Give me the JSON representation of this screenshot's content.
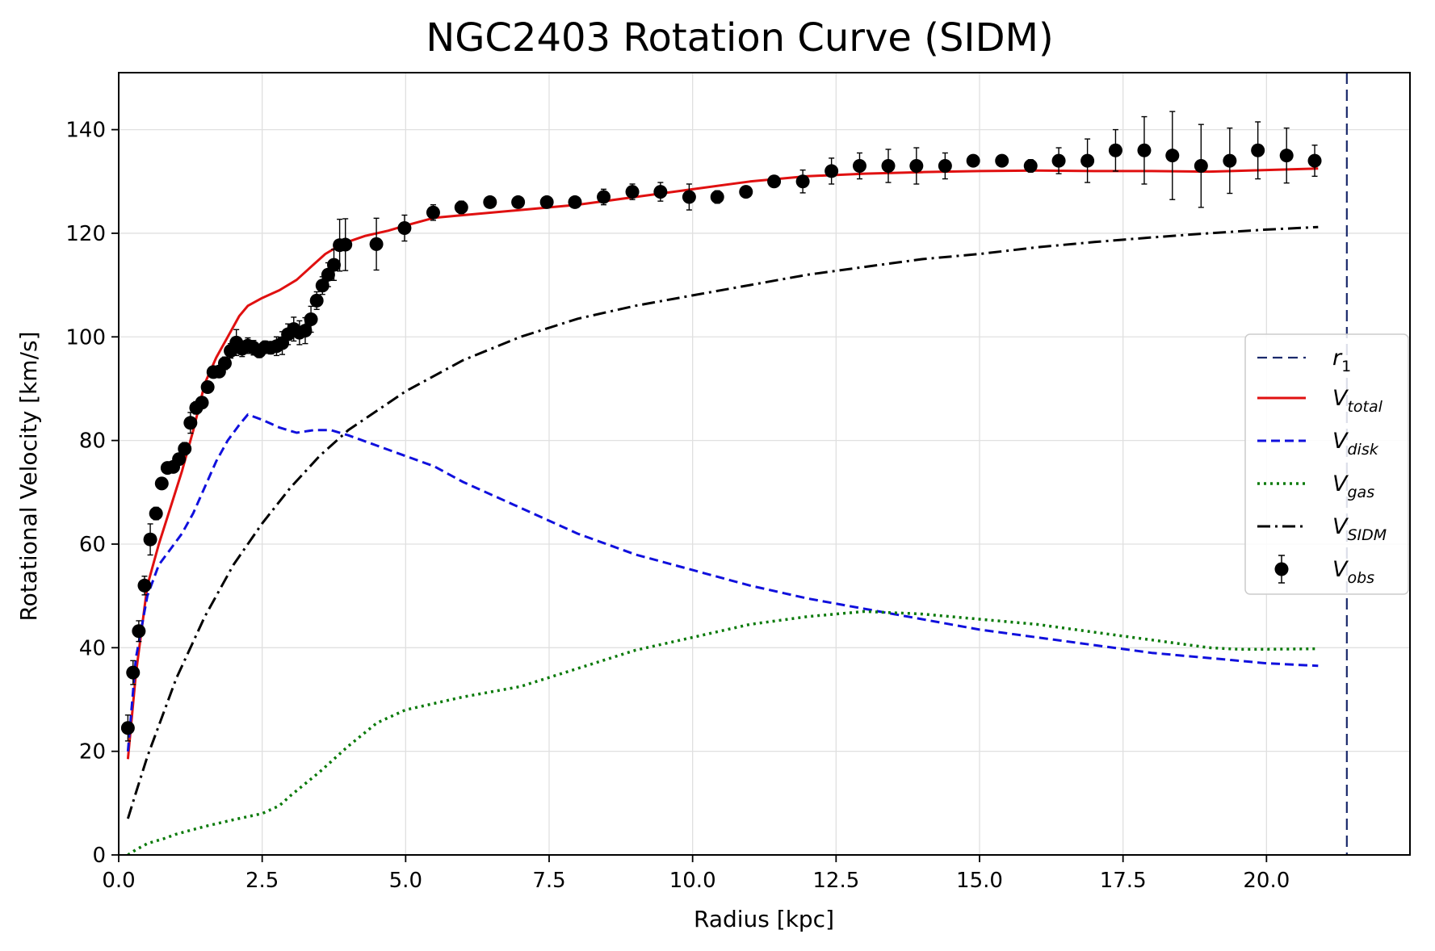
{
  "chart_data": {
    "type": "line",
    "title": "NGC2403 Rotation Curve (SIDM)",
    "xlabel": "Radius [kpc]",
    "ylabel": "Rotational Velocity [km/s]",
    "xlim": [
      0,
      22.5
    ],
    "ylim": [
      0,
      151
    ],
    "xticks": [
      0.0,
      2.5,
      5.0,
      7.5,
      10.0,
      12.5,
      15.0,
      17.5,
      20.0
    ],
    "xtick_labels": [
      "0.0",
      "2.5",
      "5.0",
      "7.5",
      "10.0",
      "12.5",
      "15.0",
      "17.5",
      "20.0"
    ],
    "yticks": [
      0,
      20,
      40,
      60,
      80,
      100,
      120,
      140
    ],
    "ytick_labels": [
      "0",
      "20",
      "40",
      "60",
      "80",
      "100",
      "120",
      "140"
    ],
    "grid": true,
    "legend_position": "center-right",
    "vline": {
      "label": "r1",
      "x": 21.4,
      "color": "#1a2a6c"
    },
    "series": [
      {
        "name": "Vtotal",
        "style": "solid",
        "color": "#e01010",
        "x": [
          0.16,
          0.3,
          0.5,
          0.7,
          0.9,
          1.1,
          1.3,
          1.5,
          1.7,
          1.9,
          2.1,
          2.25,
          2.5,
          2.8,
          3.1,
          3.4,
          3.6,
          3.9,
          4.3,
          4.7,
          5.0,
          5.5,
          6.0,
          7.0,
          8.0,
          9.0,
          10.0,
          11.0,
          12.0,
          13.0,
          14.0,
          15.0,
          16.0,
          17.0,
          18.0,
          19.0,
          20.0,
          20.9
        ],
        "y": [
          18.5,
          35,
          52,
          60,
          67,
          74,
          82,
          91,
          96,
          100,
          104,
          106,
          107.5,
          109,
          111,
          114,
          116,
          118,
          119.5,
          120.5,
          121.5,
          123,
          123.5,
          124.5,
          125.5,
          127,
          128.5,
          130,
          131,
          131.5,
          131.8,
          132,
          132.1,
          132,
          132,
          131.9,
          132.2,
          132.5
        ]
      },
      {
        "name": "Vdisk",
        "style": "dashed",
        "color": "#1010dd",
        "x": [
          0.16,
          0.3,
          0.5,
          0.7,
          0.9,
          1.1,
          1.3,
          1.5,
          1.7,
          1.9,
          2.1,
          2.25,
          2.5,
          2.8,
          3.1,
          3.4,
          3.7,
          4.0,
          4.5,
          5.0,
          5.5,
          6.0,
          7.0,
          8.0,
          9.0,
          10.0,
          11.0,
          12.0,
          13.0,
          14.0,
          15.0,
          16.0,
          17.0,
          18.0,
          19.0,
          20.0,
          20.9
        ],
        "y": [
          20,
          38,
          50,
          56,
          59,
          62,
          66,
          71,
          76,
          80,
          83,
          85,
          84,
          82.5,
          81.5,
          82,
          82,
          81,
          79,
          77,
          75,
          72,
          67,
          62,
          58,
          55,
          52,
          49.5,
          47.5,
          45.5,
          43.5,
          42,
          40.5,
          39,
          38,
          37,
          36.5
        ]
      },
      {
        "name": "Vgas",
        "style": "dotted",
        "color": "#0a7a0a",
        "x": [
          0.16,
          0.3,
          0.5,
          0.8,
          1.0,
          1.5,
          2.0,
          2.5,
          2.8,
          3.0,
          3.5,
          4.0,
          4.5,
          5.0,
          6.0,
          7.0,
          8.0,
          9.0,
          10.0,
          11.0,
          12.0,
          13.0,
          14.0,
          15.0,
          16.0,
          17.0,
          18.0,
          19.0,
          19.5,
          20.0,
          20.9
        ],
        "y": [
          0,
          1,
          2.2,
          3.2,
          4.0,
          5.5,
          6.8,
          8.0,
          9.5,
          11.5,
          16,
          21,
          25.5,
          28,
          30.5,
          32.5,
          36,
          39.5,
          42,
          44.5,
          46,
          47,
          46.5,
          45.5,
          44.5,
          43,
          41.5,
          40,
          39.7,
          39.7,
          39.8
        ]
      },
      {
        "name": "VSIDM",
        "style": "dashdot",
        "color": "#000000",
        "x": [
          0.16,
          0.3,
          0.5,
          0.8,
          1.0,
          1.5,
          2.0,
          2.5,
          3.0,
          3.5,
          4.0,
          5.0,
          6.0,
          7.0,
          8.0,
          9.0,
          10.0,
          11.0,
          12.0,
          13.0,
          14.0,
          15.0,
          16.0,
          17.0,
          18.0,
          19.0,
          20.0,
          20.9
        ],
        "y": [
          7,
          12,
          19,
          28,
          34,
          46,
          56,
          64,
          71,
          77,
          82,
          89.5,
          95.5,
          100,
          103.5,
          106,
          108,
          110,
          112,
          113.5,
          115,
          116,
          117.3,
          118.3,
          119.2,
          120,
          120.7,
          121.2
        ]
      }
    ],
    "observed": {
      "name": "Vobs",
      "color": "#000000",
      "x": [
        0.16,
        0.25,
        0.35,
        0.45,
        0.55,
        0.65,
        0.75,
        0.85,
        0.95,
        1.05,
        1.15,
        1.25,
        1.35,
        1.45,
        1.55,
        1.65,
        1.75,
        1.85,
        1.95,
        2.05,
        2.15,
        2.25,
        2.35,
        2.45,
        2.55,
        2.65,
        2.75,
        2.85,
        2.95,
        3.05,
        3.15,
        3.25,
        3.35,
        3.45,
        3.55,
        3.65,
        3.75,
        3.85,
        3.95,
        4.49,
        4.98,
        5.48,
        5.97,
        6.47,
        6.96,
        7.46,
        7.95,
        8.45,
        8.95,
        9.44,
        9.94,
        10.43,
        10.93,
        11.42,
        11.92,
        12.42,
        12.91,
        13.41,
        13.9,
        14.4,
        14.89,
        15.39,
        15.89,
        16.38,
        16.88,
        17.37,
        17.87,
        18.36,
        18.86,
        19.36,
        19.85,
        20.35,
        20.84
      ],
      "y": [
        24.5,
        35.2,
        43.2,
        52.0,
        60.9,
        65.9,
        71.7,
        74.7,
        74.9,
        76.4,
        78.4,
        83.4,
        86.3,
        87.3,
        90.3,
        93.2,
        93.3,
        94.9,
        97.3,
        98.9,
        97.7,
        98.3,
        97.9,
        97.2,
        98.0,
        97.9,
        98.2,
        98.8,
        100.5,
        101.5,
        100.8,
        101.2,
        103.4,
        107.0,
        109.9,
        112.0,
        113.9,
        117.7,
        117.8,
        117.9,
        121.0,
        124.0,
        125.0,
        126.0,
        126.0,
        126.0,
        126.0,
        127.0,
        128.0,
        128.0,
        127.0,
        127.0,
        128.0,
        130.0,
        130.0,
        132.0,
        133.0,
        133.0,
        133.0,
        133.0,
        134.0,
        134.0,
        133.0,
        134.0,
        134.0,
        136.0,
        136.0,
        135.0,
        133.0,
        134.0,
        136.0,
        135.0,
        134.0
      ],
      "err": [
        2.5,
        2.3,
        2.0,
        1.8,
        3.0,
        1.2,
        1.0,
        0.8,
        0.8,
        0.8,
        1.2,
        2.0,
        1.2,
        1.0,
        1.0,
        1.0,
        1.0,
        1.2,
        1.4,
        2.5,
        1.5,
        1.5,
        1.4,
        1.2,
        1.2,
        1.2,
        1.8,
        2.2,
        2.0,
        2.3,
        2.3,
        2.5,
        2.5,
        1.7,
        1.7,
        2.3,
        3.0,
        5.0,
        5.0,
        5.0,
        2.5,
        1.5,
        1.2,
        1.0,
        1.0,
        1.0,
        1.0,
        1.5,
        1.5,
        1.8,
        2.5,
        1.2,
        1.0,
        1.0,
        2.2,
        2.5,
        2.5,
        3.2,
        3.5,
        2.5,
        1.0,
        1.0,
        1.2,
        2.5,
        4.2,
        4.0,
        6.5,
        8.5,
        8.0,
        6.3,
        5.5,
        5.3,
        3.0
      ]
    }
  }
}
